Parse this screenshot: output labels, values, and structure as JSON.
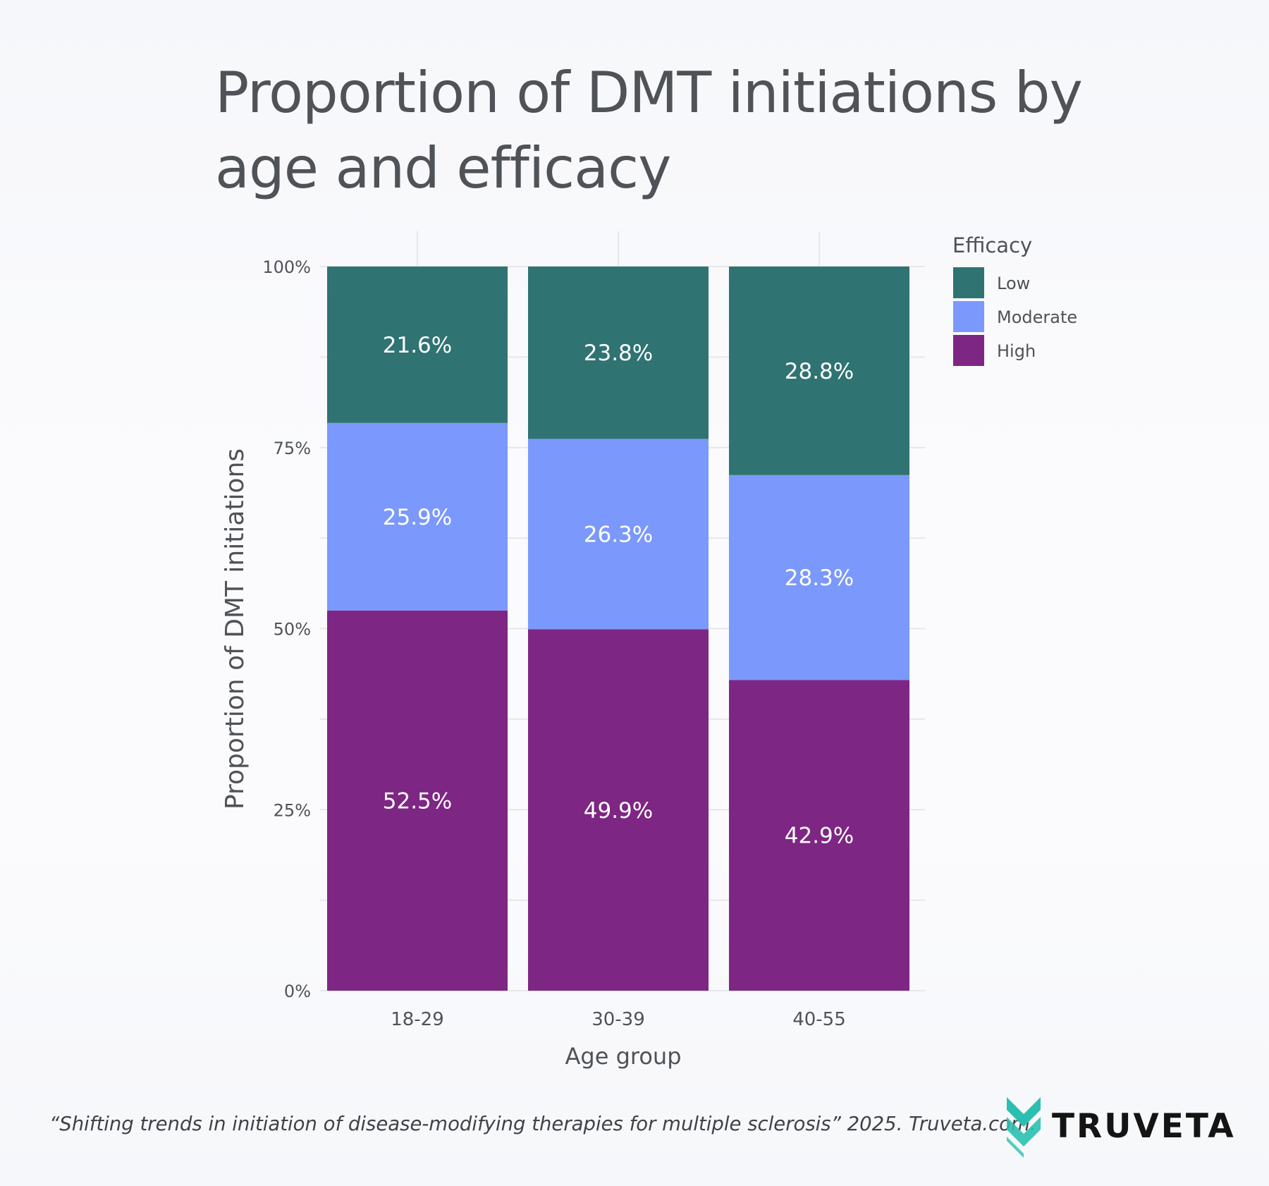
{
  "chart_data": {
    "type": "bar",
    "stacked": true,
    "title": "Proportion of DMT initiations by age and efficacy",
    "xlabel": "Age group",
    "ylabel": "Proportion of DMT initiations",
    "categories": [
      "18-29",
      "30-39",
      "40-55"
    ],
    "series": [
      {
        "name": "High",
        "color": "#7e2683",
        "values": [
          52.5,
          49.9,
          42.9
        ],
        "labels": [
          "52.5%",
          "49.9%",
          "42.9%"
        ]
      },
      {
        "name": "Moderate",
        "color": "#7b98fc",
        "values": [
          25.9,
          26.3,
          28.3
        ],
        "labels": [
          "25.9%",
          "26.3%",
          "28.3%"
        ]
      },
      {
        "name": "Low",
        "color": "#2f7372",
        "values": [
          21.6,
          23.8,
          28.8
        ],
        "labels": [
          "21.6%",
          "23.8%",
          "28.8%"
        ]
      }
    ],
    "ylim": [
      0,
      100
    ],
    "yticks": [
      0,
      25,
      50,
      75,
      100
    ],
    "ytick_labels": [
      "0%",
      "25%",
      "50%",
      "75%",
      "100%"
    ],
    "grid": true,
    "legend": {
      "title": "Efficacy",
      "position": "right",
      "entries": [
        "Low",
        "Moderate",
        "High"
      ]
    }
  },
  "footer": {
    "citation": "“Shifting trends in initiation of disease-modifying therapies for multiple sclerosis” 2025. Truveta.com.",
    "brand": "TRUVETA",
    "logo_icon": "chevron-stack-logo-icon",
    "logo_color": "#2bbfb1"
  }
}
